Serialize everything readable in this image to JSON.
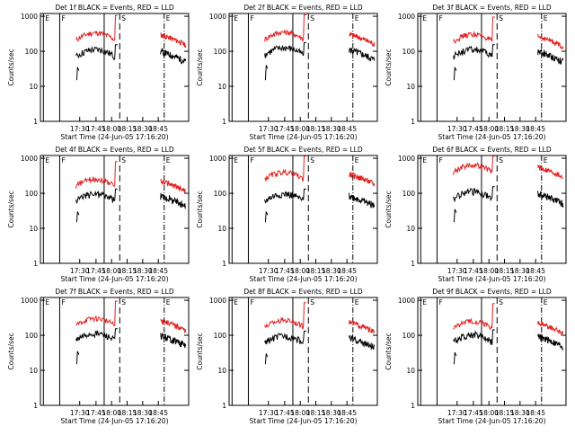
{
  "chart_data": [
    {
      "type": "line",
      "title": "Det 1f BLACK = Events, RED = LLD",
      "ylabel": "Counts/sec",
      "xlabel": "Start Time (24-Jun-05 17:16:20)",
      "x_tick_labels": [
        "17:30",
        "17:45",
        "18:00",
        "18:15",
        "18:30",
        "18:45"
      ],
      "y_tick_labels": [
        "1",
        "10",
        "100",
        "1000"
      ],
      "event_markers": [
        "E",
        "F",
        "S",
        "E"
      ],
      "ylim": [
        1,
        1200
      ],
      "yscale": "log",
      "series": [
        {
          "name": "BLACK",
          "color": "#000000"
        },
        {
          "name": "RED",
          "color": "#e02020"
        }
      ],
      "black_level": 70,
      "red_level": 210
    },
    {
      "type": "line",
      "title": "Det 2f BLACK = Events, RED = LLD",
      "ylabel": "Counts/sec",
      "xlabel": "Start Time (24-Jun-05 17:16:20)",
      "x_tick_labels": [
        "17:30",
        "17:45",
        "18:00",
        "18:15",
        "18:30",
        "18:45"
      ],
      "y_tick_labels": [
        "1",
        "10",
        "100",
        "1000"
      ],
      "event_markers": [
        "E",
        "F",
        "S",
        "E"
      ],
      "ylim": [
        1,
        1200
      ],
      "yscale": "log",
      "series": [
        {
          "name": "BLACK",
          "color": "#000000"
        },
        {
          "name": "RED",
          "color": "#e02020"
        }
      ],
      "black_level": 80,
      "red_level": 220
    },
    {
      "type": "line",
      "title": "Det 3f BLACK = Events, RED = LLD",
      "ylabel": "Counts/sec",
      "xlabel": "Start Time (24-Jun-05 17:16:20)",
      "x_tick_labels": [
        "17:30",
        "17:45",
        "18:00",
        "18:15",
        "18:30",
        "18:45"
      ],
      "y_tick_labels": [
        "1",
        "10",
        "100",
        "1000"
      ],
      "event_markers": [
        "E",
        "F",
        "S",
        "E"
      ],
      "ylim": [
        1,
        1200
      ],
      "yscale": "log",
      "series": [
        {
          "name": "BLACK",
          "color": "#000000"
        },
        {
          "name": "RED",
          "color": "#e02020"
        }
      ],
      "black_level": 70,
      "red_level": 190
    },
    {
      "type": "line",
      "title": "Det 4f BLACK = Events, RED = LLD",
      "ylabel": "Counts/sec",
      "xlabel": "Start Time (24-Jun-05 17:16:20)",
      "x_tick_labels": [
        "17:30",
        "17:45",
        "18:00",
        "18:15",
        "18:30",
        "18:45"
      ],
      "y_tick_labels": [
        "1",
        "10",
        "100",
        "1000"
      ],
      "event_markers": [
        "E",
        "F",
        "S",
        "E"
      ],
      "ylim": [
        1,
        1200
      ],
      "yscale": "log",
      "series": [
        {
          "name": "BLACK",
          "color": "#000000"
        },
        {
          "name": "RED",
          "color": "#e02020"
        }
      ],
      "black_level": 60,
      "red_level": 160
    },
    {
      "type": "line",
      "title": "Det 5f BLACK = Events, RED = LLD",
      "ylabel": "Counts/sec",
      "xlabel": "Start Time (24-Jun-05 17:16:20)",
      "x_tick_labels": [
        "17:30",
        "17:45",
        "18:00",
        "18:15",
        "18:30",
        "18:45"
      ],
      "y_tick_labels": [
        "1",
        "10",
        "100",
        "1000"
      ],
      "event_markers": [
        "E",
        "F",
        "S",
        "E"
      ],
      "ylim": [
        1,
        1200
      ],
      "yscale": "log",
      "series": [
        {
          "name": "BLACK",
          "color": "#000000"
        },
        {
          "name": "RED",
          "color": "#e02020"
        }
      ],
      "black_level": 60,
      "red_level": 250
    },
    {
      "type": "line",
      "title": "Det 6f BLACK = Events, RED = LLD",
      "ylabel": "Counts/sec",
      "xlabel": "Start Time (24-Jun-05 17:16:20)",
      "x_tick_labels": [
        "17:30",
        "17:45",
        "18:00",
        "18:15",
        "18:30",
        "18:45"
      ],
      "y_tick_labels": [
        "1",
        "10",
        "100",
        "1000"
      ],
      "event_markers": [
        "E",
        "F",
        "S",
        "E"
      ],
      "ylim": [
        1,
        1200
      ],
      "yscale": "log",
      "series": [
        {
          "name": "BLACK",
          "color": "#000000"
        },
        {
          "name": "RED",
          "color": "#e02020"
        }
      ],
      "black_level": 70,
      "red_level": 400
    },
    {
      "type": "line",
      "title": "Det 7f BLACK = Events, RED = LLD",
      "ylabel": "Counts/sec",
      "xlabel": "Start Time (24-Jun-05 17:16:20)",
      "x_tick_labels": [
        "17:30",
        "17:45",
        "18:00",
        "18:15",
        "18:30",
        "18:45"
      ],
      "y_tick_labels": [
        "1",
        "10",
        "100",
        "1000"
      ],
      "event_markers": [
        "E",
        "F",
        "S",
        "E"
      ],
      "ylim": [
        1,
        1200
      ],
      "yscale": "log",
      "series": [
        {
          "name": "BLACK",
          "color": "#000000"
        },
        {
          "name": "RED",
          "color": "#e02020"
        }
      ],
      "black_level": 70,
      "red_level": 190
    },
    {
      "type": "line",
      "title": "Det 8f BLACK = Events, RED = LLD",
      "ylabel": "Counts/sec",
      "xlabel": "Start Time (24-Jun-05 17:16:20)",
      "x_tick_labels": [
        "17:30",
        "17:45",
        "18:00",
        "18:15",
        "18:30",
        "18:45"
      ],
      "y_tick_labels": [
        "1",
        "10",
        "100",
        "1000"
      ],
      "event_markers": [
        "E",
        "F",
        "S",
        "E"
      ],
      "ylim": [
        1,
        1200
      ],
      "yscale": "log",
      "series": [
        {
          "name": "BLACK",
          "color": "#000000"
        },
        {
          "name": "RED",
          "color": "#e02020"
        }
      ],
      "black_level": 60,
      "red_level": 170
    },
    {
      "type": "line",
      "title": "Det 9f BLACK = Events, RED = LLD",
      "ylabel": "Counts/sec",
      "xlabel": "Start Time (24-Jun-05 17:16:20)",
      "x_tick_labels": [
        "17:30",
        "17:45",
        "18:00",
        "18:15",
        "18:30",
        "18:45"
      ],
      "y_tick_labels": [
        "1",
        "10",
        "100",
        "1000"
      ],
      "event_markers": [
        "E",
        "F",
        "S",
        "E"
      ],
      "ylim": [
        1,
        1200
      ],
      "yscale": "log",
      "series": [
        {
          "name": "BLACK",
          "color": "#000000"
        },
        {
          "name": "RED",
          "color": "#e02020"
        }
      ],
      "black_level": 65,
      "red_level": 160
    }
  ]
}
